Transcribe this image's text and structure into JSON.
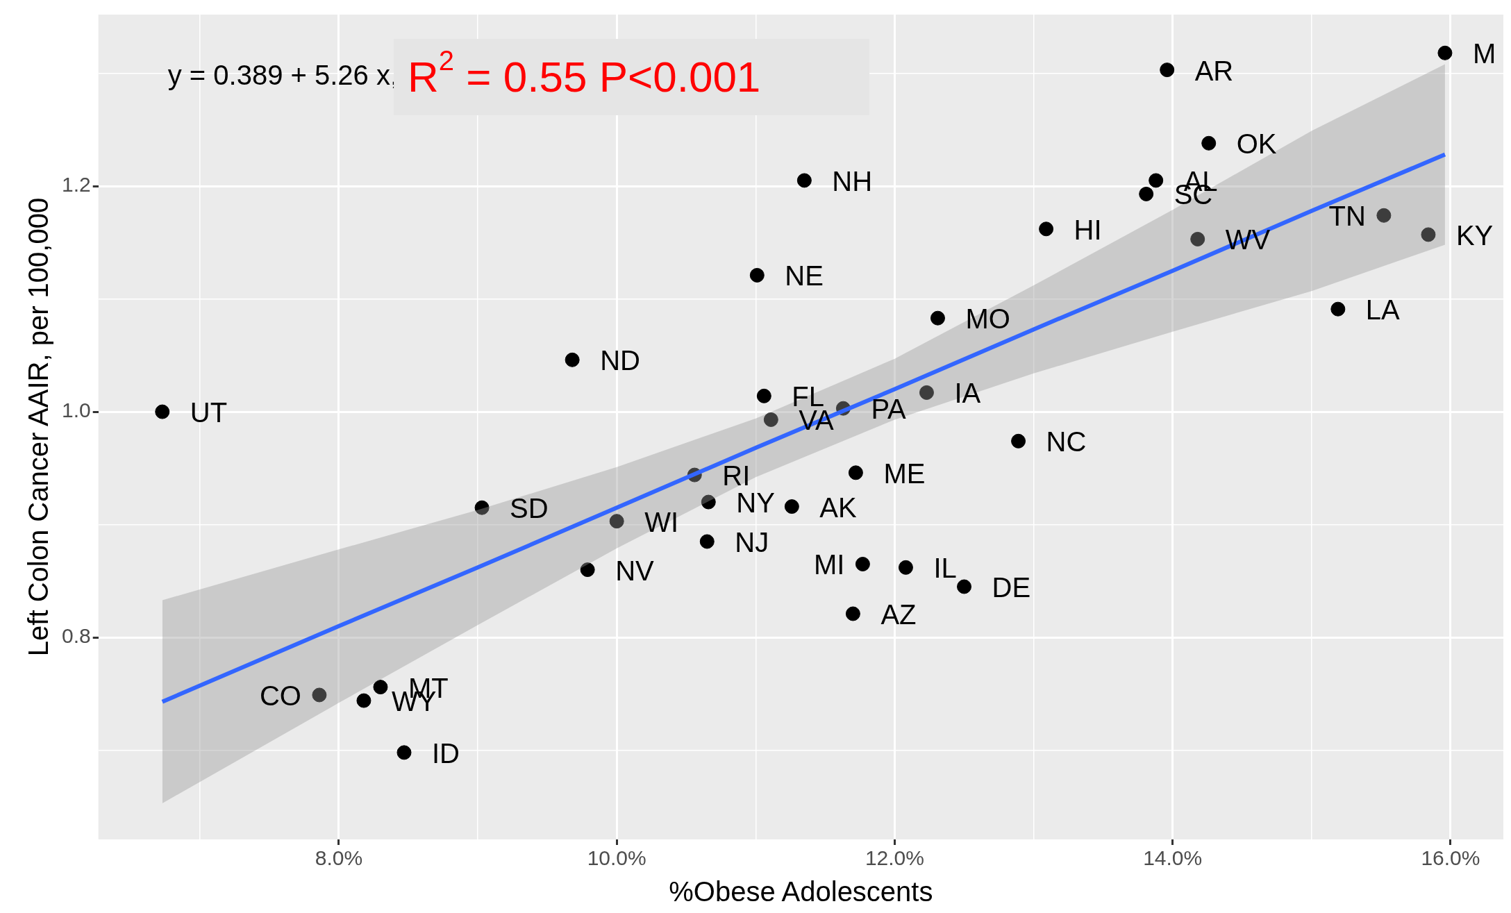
{
  "chart_data": {
    "type": "scatter",
    "xlabel": "%Obese Adolescents",
    "ylabel": "Left Colon Cancer AAIR, per 100,000",
    "xlim": [
      6.27,
      16.38
    ],
    "ylim": [
      0.621,
      1.352
    ],
    "xticks": [
      {
        "value": 7,
        "label": null
      },
      {
        "value": 8,
        "label": "8.0%"
      },
      {
        "value": 9,
        "label": null
      },
      {
        "value": 10,
        "label": "10.0%"
      },
      {
        "value": 11,
        "label": null
      },
      {
        "value": 12,
        "label": "12.0%"
      },
      {
        "value": 13,
        "label": null
      },
      {
        "value": 14,
        "label": "14.0%"
      },
      {
        "value": 15,
        "label": null
      },
      {
        "value": 16,
        "label": "16.0%"
      }
    ],
    "yticks": [
      {
        "value": 0.7,
        "label": null
      },
      {
        "value": 0.8,
        "label": "0.8"
      },
      {
        "value": 0.9,
        "label": null
      },
      {
        "value": 1.0,
        "label": "1.0"
      },
      {
        "value": 1.1,
        "label": null
      },
      {
        "value": 1.2,
        "label": "1.2"
      },
      {
        "value": 1.3,
        "label": null
      }
    ],
    "grid": true,
    "legend": false,
    "marker": "circle",
    "series": [
      {
        "color": "#000000",
        "x": [
          15.96,
          13.96,
          14.26,
          13.88,
          13.81,
          11.35,
          13.09,
          14.18,
          15.52,
          15.84,
          15.19,
          11.01,
          12.31,
          9.68,
          6.73,
          11.06,
          11.63,
          12.23,
          11.11,
          12.89,
          10.56,
          11.72,
          9.03,
          10.66,
          11.26,
          10.0,
          10.65,
          9.79,
          11.77,
          12.08,
          12.5,
          11.7,
          7.86,
          8.3,
          8.18,
          8.47
        ],
        "values": [
          1.318,
          1.303,
          1.238,
          1.205,
          1.193,
          1.205,
          1.162,
          1.153,
          1.174,
          1.157,
          1.091,
          1.121,
          1.083,
          1.046,
          1.0,
          1.014,
          1.003,
          1.017,
          0.993,
          0.974,
          0.944,
          0.946,
          0.915,
          0.92,
          0.916,
          0.903,
          0.885,
          0.86,
          0.865,
          0.862,
          0.845,
          0.821,
          0.749,
          0.756,
          0.744,
          0.698
        ]
      },
      {
        "type": "line",
        "color": "#3366ff",
        "marker": "none",
        "x": [
          6.73,
          8,
          9,
          10,
          11,
          12,
          13,
          14,
          15,
          15.96
        ],
        "values": [
          0.743,
          0.81,
          0.862,
          0.915,
          0.968,
          1.02,
          1.073,
          1.125,
          1.178,
          1.228
        ],
        "lower": [
          0.653,
          0.742,
          0.811,
          0.879,
          0.942,
          0.993,
          1.034,
          1.071,
          1.107,
          1.148
        ],
        "upper": [
          0.833,
          0.878,
          0.913,
          0.951,
          0.994,
          1.047,
          1.112,
          1.179,
          1.249,
          1.308
        ]
      }
    ],
    "annotations": [
      "y = 0.389 + 5.26 x,",
      "R$^{2}$ = 0.55 P<0.001",
      {
        "text": "M",
        "x": 15.96,
        "y": 1.318
      },
      {
        "text": "AR",
        "x": 13.96,
        "y": 1.303
      },
      {
        "text": "OK",
        "x": 14.26,
        "y": 1.238
      },
      {
        "text": "AL",
        "x": 13.88,
        "y": 1.205
      },
      {
        "text": "SC",
        "x": 13.81,
        "y": 1.193
      },
      {
        "text": "NH",
        "x": 11.35,
        "y": 1.205
      },
      {
        "text": "HI",
        "x": 13.09,
        "y": 1.162
      },
      {
        "text": "WV",
        "x": 14.18,
        "y": 1.153
      },
      {
        "text": "TN",
        "x": 15.52,
        "y": 1.174
      },
      {
        "text": "KY",
        "x": 15.84,
        "y": 1.157
      },
      {
        "text": "LA",
        "x": 15.19,
        "y": 1.091
      },
      {
        "text": "NE",
        "x": 11.01,
        "y": 1.121
      },
      {
        "text": "MO",
        "x": 12.31,
        "y": 1.083
      },
      {
        "text": "ND",
        "x": 9.68,
        "y": 1.046
      },
      {
        "text": "UT",
        "x": 6.73,
        "y": 1.0
      },
      {
        "text": "FL",
        "x": 11.06,
        "y": 1.014
      },
      {
        "text": "PA",
        "x": 11.63,
        "y": 1.003
      },
      {
        "text": "IA",
        "x": 12.23,
        "y": 1.017
      },
      {
        "text": "VA",
        "x": 11.11,
        "y": 0.993
      },
      {
        "text": "NC",
        "x": 12.89,
        "y": 0.974
      },
      {
        "text": "RI",
        "x": 10.56,
        "y": 0.944
      },
      {
        "text": "ME",
        "x": 11.72,
        "y": 0.946
      },
      {
        "text": "SD",
        "x": 9.03,
        "y": 0.915
      },
      {
        "text": "NY",
        "x": 10.66,
        "y": 0.92
      },
      {
        "text": "AK",
        "x": 11.26,
        "y": 0.916
      },
      {
        "text": "WI",
        "x": 10.0,
        "y": 0.903
      },
      {
        "text": "NJ",
        "x": 10.65,
        "y": 0.885
      },
      {
        "text": "NV",
        "x": 9.79,
        "y": 0.86
      },
      {
        "text": "MI",
        "x": 11.77,
        "y": 0.865
      },
      {
        "text": "IL",
        "x": 12.08,
        "y": 0.862
      },
      {
        "text": "DE",
        "x": 12.5,
        "y": 0.845
      },
      {
        "text": "AZ",
        "x": 11.7,
        "y": 0.821
      },
      {
        "text": "CO",
        "x": 7.86,
        "y": 0.749
      },
      {
        "text": "MT",
        "x": 8.3,
        "y": 0.756
      },
      {
        "text": "WY",
        "x": 8.18,
        "y": 0.744
      },
      {
        "text": "ID",
        "x": 8.47,
        "y": 0.698
      }
    ]
  }
}
